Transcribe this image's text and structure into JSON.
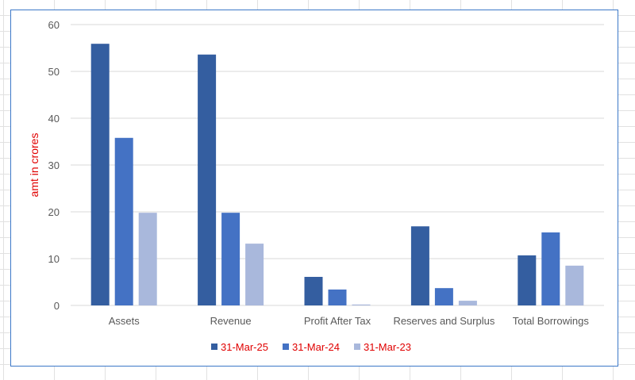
{
  "chart_data": {
    "type": "bar",
    "title": "",
    "xlabel": "",
    "ylabel": "amt in crores",
    "ylim": [
      0,
      60
    ],
    "yticks": [
      0,
      10,
      20,
      30,
      40,
      50,
      60
    ],
    "grid": true,
    "legend_position": "bottom",
    "categories": [
      "Assets",
      "Revenue",
      "Profit After Tax",
      "Reserves and Surplus",
      "Total Borrowings"
    ],
    "series": [
      {
        "name": "31-Mar-25",
        "color": "#345ea0",
        "values": [
          55.9,
          53.6,
          6.1,
          16.9,
          10.7
        ]
      },
      {
        "name": "31-Mar-24",
        "color": "#4472c4",
        "values": [
          35.8,
          19.8,
          3.4,
          3.7,
          15.6
        ]
      },
      {
        "name": "31-Mar-23",
        "color": "#a9b8dc",
        "values": [
          19.8,
          13.2,
          0.2,
          1.0,
          8.5
        ]
      }
    ],
    "ylabel_color": "#e00000",
    "legend_text_color": "#e00000"
  }
}
